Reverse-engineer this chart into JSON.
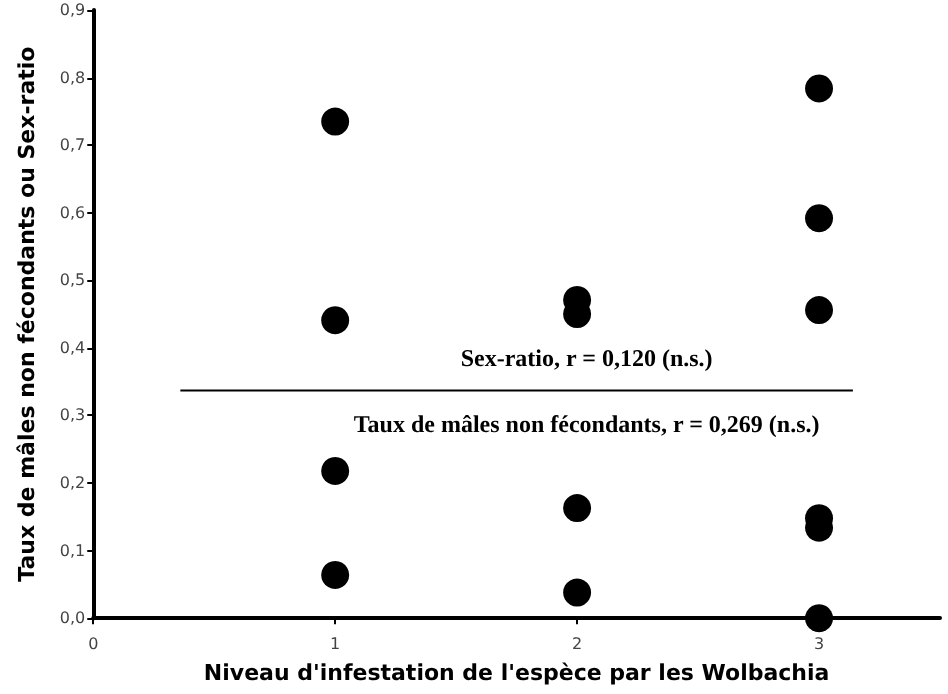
{
  "chart_data": {
    "type": "scatter",
    "xlabel": "Niveau d'infestation de l'espèce par les Wolbachia",
    "ylabel": "Taux de mâles non fécondants ou Sex-ratio",
    "xlim": [
      0,
      3.5
    ],
    "xticks": [
      0,
      1,
      2,
      3
    ],
    "ylim": [
      0,
      0.9
    ],
    "yticks": [
      {
        "value": 0,
        "label": "0,0"
      },
      {
        "value": 0.1,
        "label": "0,1"
      },
      {
        "value": 0.2,
        "label": "0,2"
      },
      {
        "value": 0.3,
        "label": "0,3"
      },
      {
        "value": 0.4,
        "label": "0,4"
      },
      {
        "value": 0.5,
        "label": "0,5"
      },
      {
        "value": 0.6,
        "label": "0,6"
      },
      {
        "value": 0.7,
        "label": "0,7"
      },
      {
        "value": 0.8,
        "label": "0,8"
      },
      {
        "value": 0.9,
        "label": "0,9"
      }
    ],
    "grid": false,
    "marker": "circle",
    "series": [
      {
        "color": "#000000",
        "x": [
          1,
          1,
          2,
          2,
          3,
          3,
          3
        ],
        "values": [
          0.735,
          0.441,
          0.471,
          0.45,
          0.784,
          0.592,
          0.456
        ]
      },
      {
        "color": "#000000",
        "x": [
          1,
          1,
          2,
          2,
          3,
          3,
          3
        ],
        "values": [
          0.218,
          0.064,
          0.163,
          0.038,
          0.148,
          0.134,
          0.0
        ]
      },
      {
        "type": "line",
        "color": "#000000",
        "marker": "none",
        "x": [
          0.36,
          3.14
        ],
        "values": [
          0.337,
          0.337
        ]
      }
    ],
    "annotations": [
      "Sex-ratio, r = 0,120 (n.s.)",
      "Taux de mâles non fécondants, r = 0,269 (n.s.)"
    ]
  }
}
